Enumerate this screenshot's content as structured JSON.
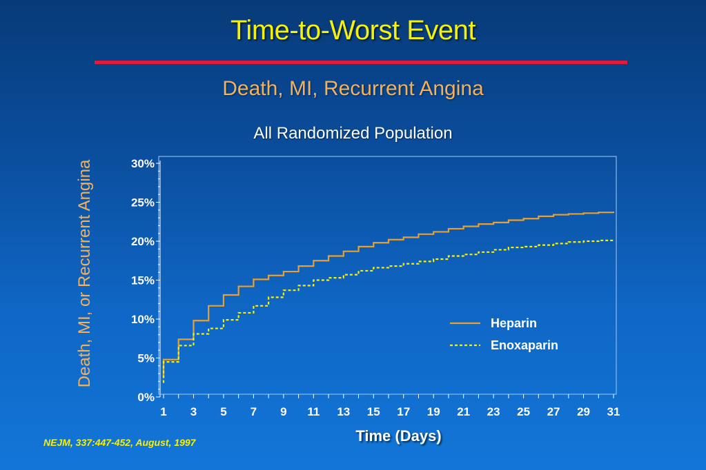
{
  "slide": {
    "title": "Time-to-Worst Event",
    "subtitle": "Death, MI, Recurrent Angina",
    "citation": "NEJM, 337:447-452, August, 1997",
    "colors": {
      "title": "#f5f10a",
      "rule": "#e21b3a",
      "subtitle": "#f3b25a"
    }
  },
  "chart_data": {
    "type": "line",
    "step": true,
    "title": "All Randomized Population",
    "xlabel": "Time (Days)",
    "ylabel": "Death, MI, or Recurrent Angina",
    "xlim": [
      1,
      31
    ],
    "ylim": [
      0,
      30
    ],
    "xticks": [
      1,
      3,
      5,
      7,
      9,
      11,
      13,
      15,
      17,
      19,
      21,
      23,
      25,
      27,
      29,
      31
    ],
    "xtick_labels": [
      "1",
      "3",
      "5",
      "7",
      "9",
      "11",
      "13",
      "15",
      "17",
      "19",
      "21",
      "23",
      "25",
      "27",
      "29",
      "31"
    ],
    "yticks": [
      0,
      5,
      10,
      15,
      20,
      25,
      30
    ],
    "ytick_labels": [
      "0%",
      "5%",
      "10%",
      "15%",
      "20%",
      "25%",
      "30%"
    ],
    "grid": false,
    "legend_position": "right-middle",
    "series": [
      {
        "name": "Heparin",
        "color": "#e8a030",
        "dash": "solid",
        "x": [
          1,
          2,
          3,
          4,
          5,
          6,
          7,
          8,
          9,
          10,
          11,
          12,
          13,
          14,
          15,
          16,
          17,
          18,
          19,
          20,
          21,
          22,
          23,
          24,
          25,
          26,
          27,
          28,
          29,
          30,
          31
        ],
        "y": [
          4.8,
          7.4,
          9.8,
          11.7,
          13.1,
          14.2,
          15.1,
          15.6,
          16.1,
          16.8,
          17.5,
          18.1,
          18.7,
          19.3,
          19.8,
          20.2,
          20.5,
          20.9,
          21.2,
          21.6,
          21.9,
          22.2,
          22.4,
          22.7,
          22.9,
          23.2,
          23.4,
          23.5,
          23.6,
          23.7,
          23.8
        ]
      },
      {
        "name": "Enoxaparin",
        "color": "#f5f10a",
        "dash": "dashed",
        "x": [
          1,
          2,
          3,
          4,
          5,
          6,
          7,
          8,
          9,
          10,
          11,
          12,
          13,
          14,
          15,
          16,
          17,
          18,
          19,
          20,
          21,
          22,
          23,
          24,
          25,
          26,
          27,
          28,
          29,
          30,
          31
        ],
        "y": [
          4.5,
          6.6,
          8.1,
          8.8,
          9.9,
          10.8,
          11.7,
          12.8,
          13.7,
          14.3,
          15.0,
          15.3,
          15.7,
          16.2,
          16.6,
          16.8,
          17.1,
          17.4,
          17.7,
          18.1,
          18.3,
          18.6,
          18.9,
          19.2,
          19.3,
          19.5,
          19.7,
          19.9,
          20.0,
          20.1,
          20.2
        ]
      }
    ]
  }
}
